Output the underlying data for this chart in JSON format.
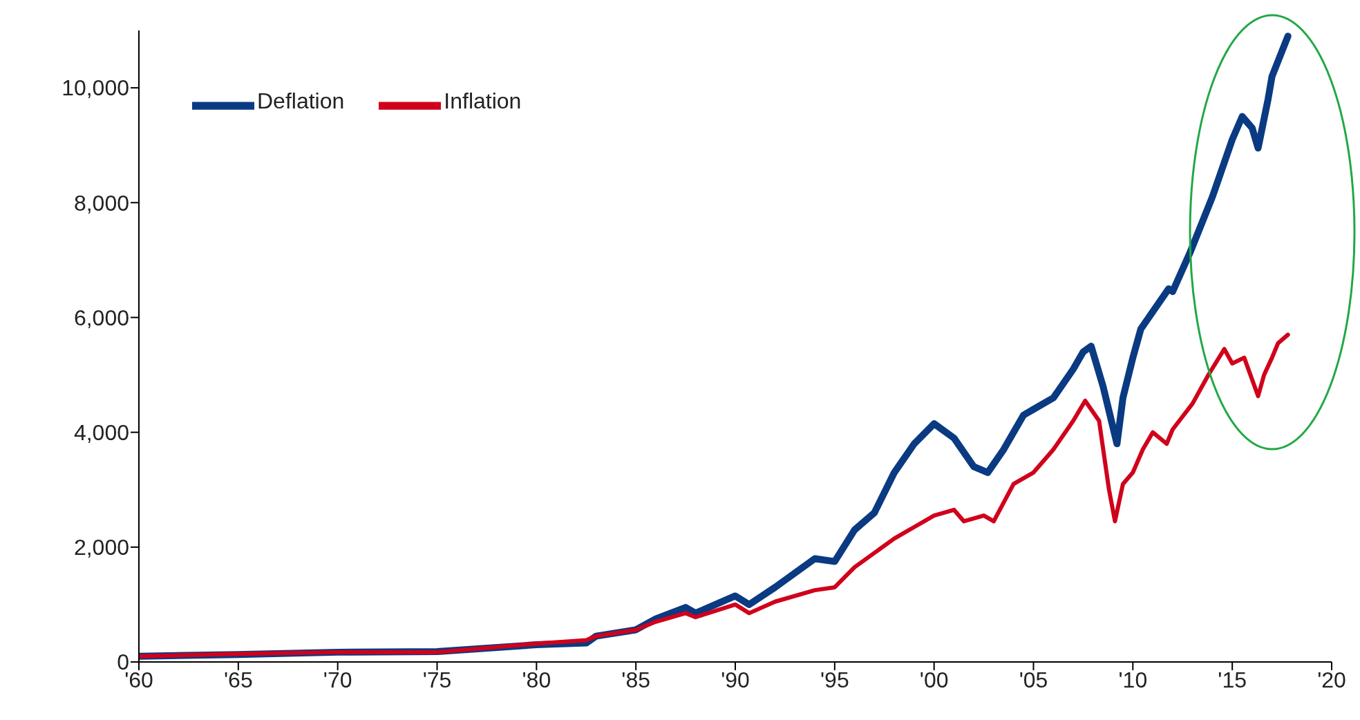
{
  "chart_data": {
    "type": "line",
    "xlim": [
      1960,
      2020
    ],
    "xticks": [
      {
        "value": 1960,
        "label": "'60"
      },
      {
        "value": 1965,
        "label": "'65"
      },
      {
        "value": 1970,
        "label": "'70"
      },
      {
        "value": 1975,
        "label": "'75"
      },
      {
        "value": 1980,
        "label": "'80"
      },
      {
        "value": 1985,
        "label": "'85"
      },
      {
        "value": 1990,
        "label": "'90"
      },
      {
        "value": 1995,
        "label": "'95"
      },
      {
        "value": 2000,
        "label": "'00"
      },
      {
        "value": 2005,
        "label": "'05"
      },
      {
        "value": 2010,
        "label": "'10"
      },
      {
        "value": 2015,
        "label": "'15"
      },
      {
        "value": 2020,
        "label": "'20"
      }
    ],
    "ylim": [
      0,
      11000
    ],
    "yticks": [
      0,
      {
        "value": 2000,
        "label": "2,000"
      },
      {
        "value": 4000,
        "label": "4,000"
      },
      {
        "value": 6000,
        "label": "6,000"
      },
      {
        "value": 8000,
        "label": "8,000"
      },
      {
        "value": 10000,
        "label": "10,000"
      }
    ],
    "grid": false,
    "legend": "top left",
    "marker": "none",
    "line_style": "solid",
    "series": [
      {
        "name": "Deflation",
        "color": "#0a3a82",
        "x": [
          1960,
          1965,
          1970,
          1975,
          1980,
          1982.5,
          1983,
          1985,
          1986,
          1987.5,
          1988,
          1990,
          1990.7,
          1992,
          1994,
          1995,
          1996,
          1997,
          1998,
          1999,
          2000,
          2001,
          2002,
          2002.7,
          2003.5,
          2004.5,
          2005,
          2006,
          2007,
          2007.5,
          2007.9,
          2008.5,
          2009.2,
          2009.5,
          2010,
          2010.4,
          2011,
          2011.8,
          2012,
          2012.9,
          2014,
          2014.5,
          2015,
          2015.5,
          2016,
          2016.3,
          2016.8,
          2017,
          2017.8
        ],
        "values": [
          100,
          130,
          170,
          180,
          300,
          330,
          450,
          560,
          750,
          950,
          850,
          1150,
          1000,
          1300,
          1800,
          1750,
          2300,
          2600,
          3300,
          3800,
          4150,
          3900,
          3400,
          3300,
          3700,
          4300,
          4400,
          4600,
          5100,
          5400,
          5500,
          4800,
          3800,
          4600,
          5300,
          5800,
          6100,
          6500,
          6450,
          7150,
          8100,
          8600,
          9100,
          9500,
          9300,
          8950,
          9800,
          10200,
          10900
        ]
      },
      {
        "name": "Inflation",
        "color": "#d0021b",
        "x": [
          1960,
          1965,
          1970,
          1975,
          1980,
          1982.5,
          1983,
          1985,
          1986,
          1987.5,
          1988,
          1990,
          1990.7,
          1992,
          1994,
          1995,
          1996,
          1997,
          1998,
          1999,
          2000,
          2001,
          2001.5,
          2002.5,
          2003,
          2004,
          2005,
          2006,
          2007,
          2007.6,
          2008.3,
          2008.8,
          2009.1,
          2009.5,
          2010,
          2010.5,
          2011,
          2011.7,
          2012,
          2013,
          2013.8,
          2014.6,
          2015,
          2015.6,
          2016.3,
          2016.6,
          2017,
          2017.3,
          2017.8
        ],
        "values": [
          100,
          140,
          170,
          170,
          320,
          380,
          450,
          560,
          700,
          850,
          780,
          1000,
          850,
          1050,
          1250,
          1300,
          1650,
          1900,
          2150,
          2350,
          2550,
          2650,
          2450,
          2550,
          2450,
          3100,
          3300,
          3700,
          4200,
          4550,
          4200,
          3000,
          2450,
          3100,
          3300,
          3700,
          4000,
          3800,
          4050,
          4500,
          5000,
          5450,
          5200,
          5300,
          4630,
          5000,
          5300,
          5550,
          5700
        ]
      }
    ]
  }
}
